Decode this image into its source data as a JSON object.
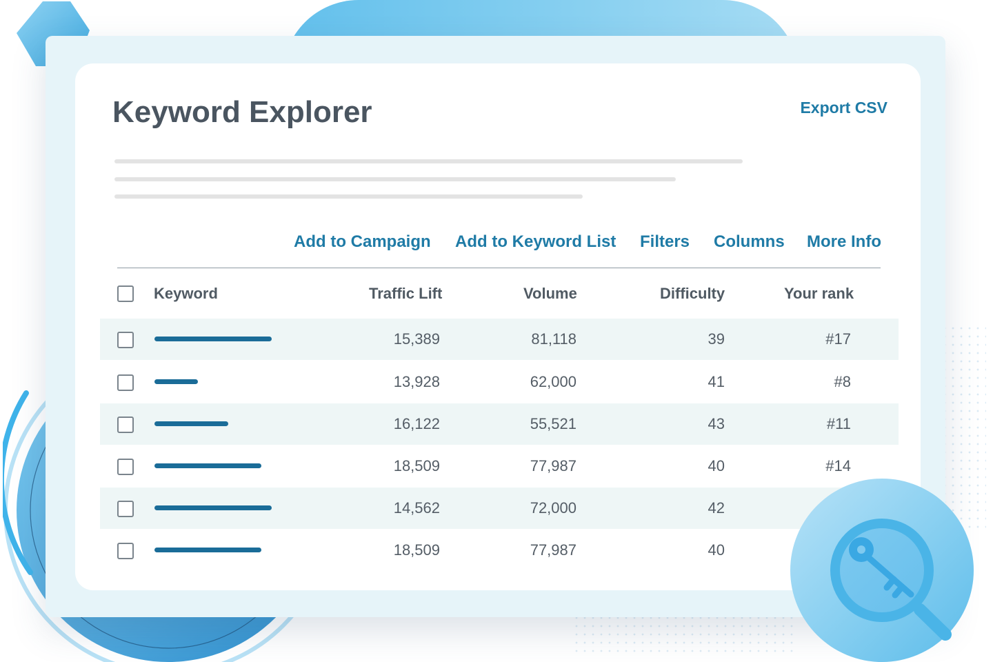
{
  "header": {
    "title": "Keyword Explorer",
    "export_label": "Export CSV"
  },
  "toolbar": {
    "add_to_campaign": "Add to Campaign",
    "add_to_keyword_list": "Add to Keyword List",
    "filters": "Filters",
    "columns": "Columns",
    "more_info": "More Info"
  },
  "table": {
    "headers": {
      "keyword": "Keyword",
      "traffic_lift": "Traffic Lift",
      "volume": "Volume",
      "difficulty": "Difficulty",
      "your_rank": "Your rank"
    },
    "rows": [
      {
        "traffic_lift": "15,389",
        "volume": "81,118",
        "difficulty": "39",
        "your_rank": "#17"
      },
      {
        "traffic_lift": "13,928",
        "volume": "62,000",
        "difficulty": "41",
        "your_rank": "#8"
      },
      {
        "traffic_lift": "16,122",
        "volume": "55,521",
        "difficulty": "43",
        "your_rank": "#11"
      },
      {
        "traffic_lift": "18,509",
        "volume": "77,987",
        "difficulty": "40",
        "your_rank": "#14"
      },
      {
        "traffic_lift": "14,562",
        "volume": "72,000",
        "difficulty": "42",
        "your_rank": ""
      },
      {
        "traffic_lift": "18,509",
        "volume": "77,987",
        "difficulty": "40",
        "your_rank": ""
      }
    ]
  },
  "icons": {
    "badge": "key-magnifier-icon"
  },
  "colors": {
    "accent": "#1f7ba6",
    "keyword_bar": "#1a6c98",
    "frame": "#e6f4f9",
    "row_shade": "#eef6f6"
  }
}
